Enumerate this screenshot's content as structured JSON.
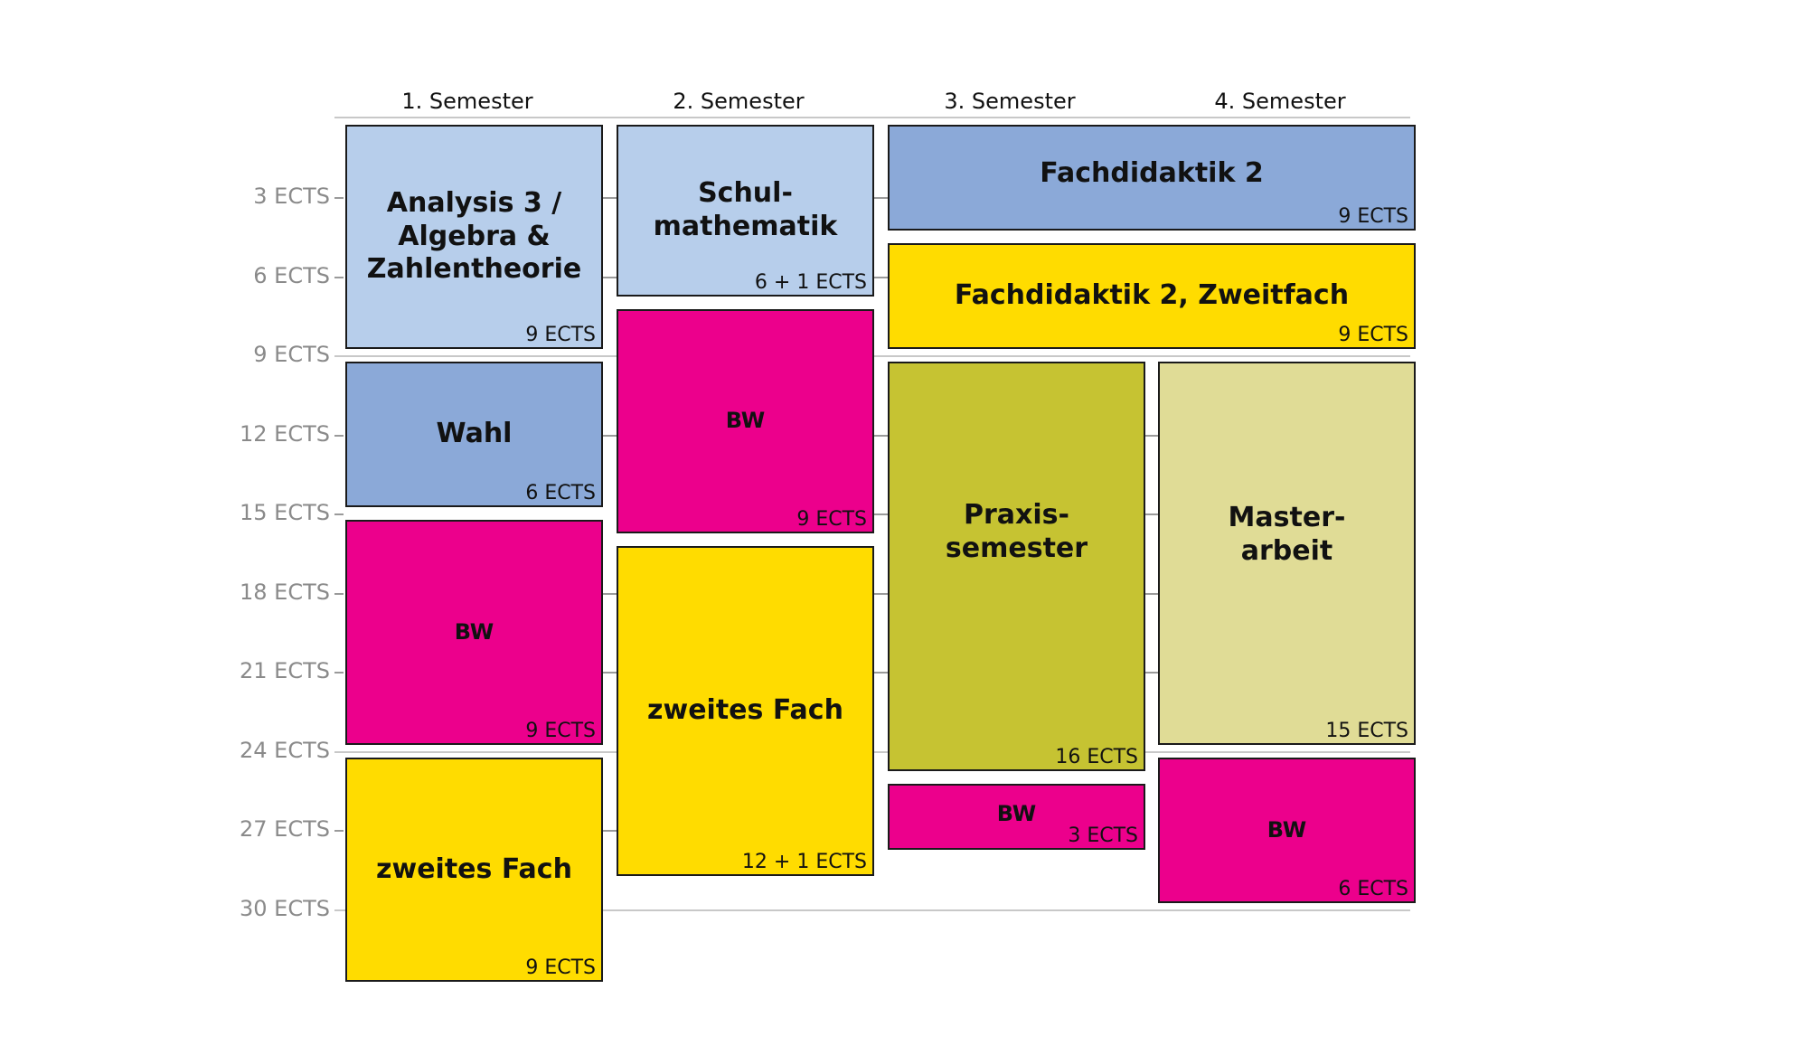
{
  "semesters": [
    "1. Semester",
    "2. Semester",
    "3. Semester",
    "4. Semester"
  ],
  "y_axis": {
    "labels": [
      "3 ECTS",
      "6 ECTS",
      "9 ECTS",
      "12 ECTS",
      "15 ECTS",
      "18 ECTS",
      "21 ECTS",
      "24 ECTS",
      "27 ECTS",
      "30 ECTS"
    ]
  },
  "colors": {
    "light_blue": "#b7ceeb",
    "mid_blue": "#8ba9d8",
    "magenta": "#ec008c",
    "yellow": "#ffdc00",
    "olive": "#c6c332",
    "khaki": "#e0dc96",
    "border": "#1a1a1a",
    "grid": "#c8c8c8",
    "axis_label": "#8a8a8a"
  },
  "modules": [
    {
      "id": "analysis",
      "title": "Analysis 3 /\nAlgebra &\nZahlentheorie",
      "ects": "9 ECTS",
      "semester": 1,
      "color": "light_blue"
    },
    {
      "id": "wahl",
      "title": "Wahl",
      "ects": "6 ECTS",
      "semester": 1,
      "color": "mid_blue"
    },
    {
      "id": "bw-s1",
      "title": "BW",
      "ects": "9 ECTS",
      "semester": 1,
      "color": "magenta"
    },
    {
      "id": "zweites-fach-s1",
      "title": "zweites Fach",
      "ects": "9 ECTS",
      "semester": 1,
      "color": "yellow"
    },
    {
      "id": "schulmathematik",
      "title": "Schul-\nmathematik",
      "ects": "6 + 1 ECTS",
      "semester": 2,
      "color": "light_blue"
    },
    {
      "id": "bw-s2",
      "title": "BW",
      "ects": "9 ECTS",
      "semester": 2,
      "color": "magenta"
    },
    {
      "id": "zweites-fach-s2",
      "title": "zweites Fach",
      "ects": "12 + 1 ECTS",
      "semester": 2,
      "color": "yellow"
    },
    {
      "id": "fachdidaktik-2",
      "title": "Fachdidaktik 2",
      "ects": "9 ECTS",
      "semester": "3-4",
      "color": "mid_blue"
    },
    {
      "id": "fachdidaktik-2-zweitfach",
      "title": "Fachdidaktik 2, Zweitfach",
      "ects": "9 ECTS",
      "semester": "3-4",
      "color": "yellow"
    },
    {
      "id": "praxissemester",
      "title": "Praxis-\nsemester",
      "ects": "16 ECTS",
      "semester": 3,
      "color": "olive"
    },
    {
      "id": "bw-s3",
      "title": "BW",
      "ects": "3 ECTS",
      "semester": 3,
      "color": "magenta"
    },
    {
      "id": "masterarbeit",
      "title": "Master-\narbeit",
      "ects": "15 ECTS",
      "semester": 4,
      "color": "khaki"
    },
    {
      "id": "bw-s4",
      "title": "BW",
      "ects": "6 ECTS",
      "semester": 4,
      "color": "magenta"
    }
  ]
}
